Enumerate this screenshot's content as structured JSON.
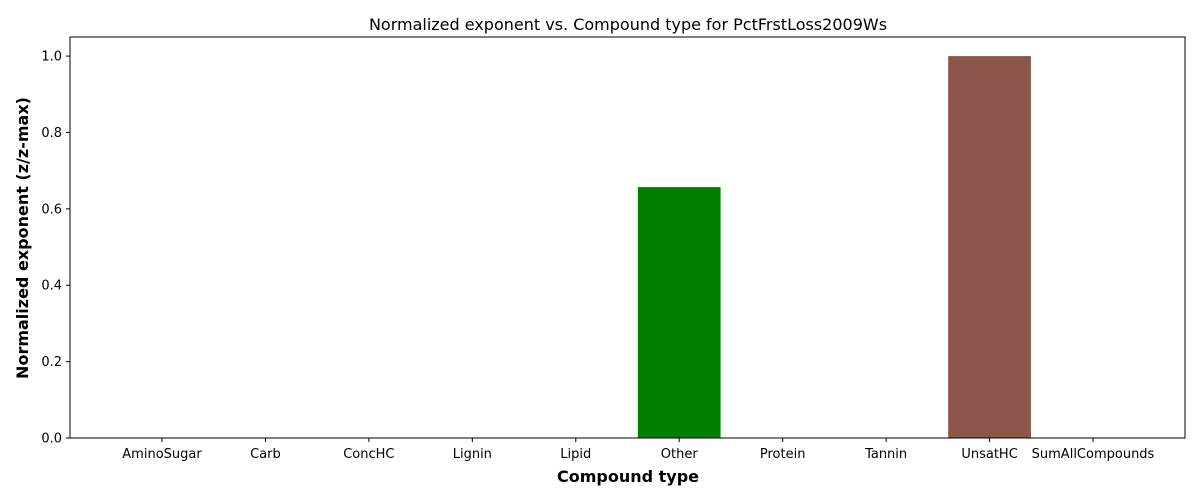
{
  "chart_data": {
    "type": "bar",
    "title": "Normalized exponent vs. Compound type for PctFrstLoss2009Ws",
    "xlabel": "Compound type",
    "ylabel": "Normalized exponent (z/z-max)",
    "categories": [
      "AminoSugar",
      "Carb",
      "ConcHC",
      "Lignin",
      "Lipid",
      "Other",
      "Protein",
      "Tannin",
      "UnsatHC",
      "SumAllCompounds"
    ],
    "values": [
      0,
      0,
      0,
      0,
      0,
      0.657,
      0,
      0,
      1.0,
      0
    ],
    "colors": [
      "#1f77b4",
      "#1f77b4",
      "#1f77b4",
      "#1f77b4",
      "#1f77b4",
      "#008000",
      "#1f77b4",
      "#1f77b4",
      "#8c564b",
      "#1f77b4"
    ],
    "ylim": [
      0,
      1.05
    ],
    "yticks": [
      "0.0",
      "0.2",
      "0.4",
      "0.6",
      "0.8",
      "1.0"
    ],
    "grid": false
  }
}
